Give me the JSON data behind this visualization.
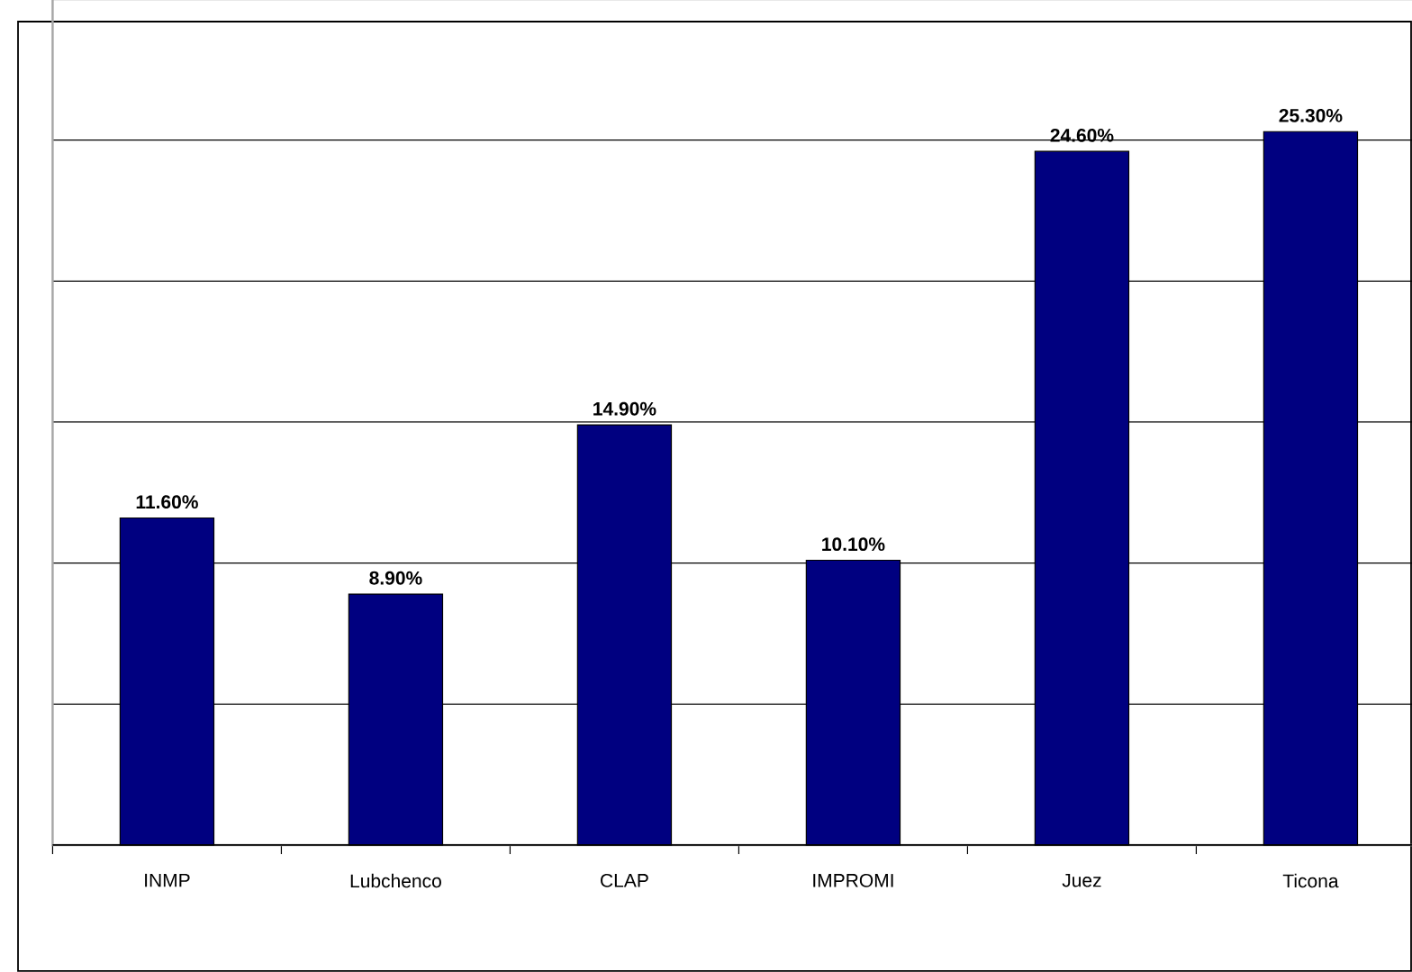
{
  "chart_data": {
    "type": "bar",
    "categories": [
      "INMP",
      "Lubchenco",
      "CLAP",
      "IMPROMI",
      "Juez",
      "Ticona"
    ],
    "values": [
      11.6,
      8.9,
      14.9,
      10.1,
      24.6,
      25.3
    ],
    "value_labels": [
      "11.60%",
      "8.90%",
      "14.90%",
      "10.10%",
      "24.60%",
      "25.30%"
    ],
    "color": "#000080",
    "ylim": [
      0,
      30
    ],
    "yticks": [
      {
        "value": 0,
        "label": null
      },
      {
        "value": 5,
        "label": null
      },
      {
        "value": 10,
        "label": null
      },
      {
        "value": 15,
        "label": null
      },
      {
        "value": 20,
        "label": null
      },
      {
        "value": 25,
        "label": null
      },
      {
        "value": 30,
        "label": null
      }
    ],
    "grid": "y",
    "tick_labels": "x"
  }
}
